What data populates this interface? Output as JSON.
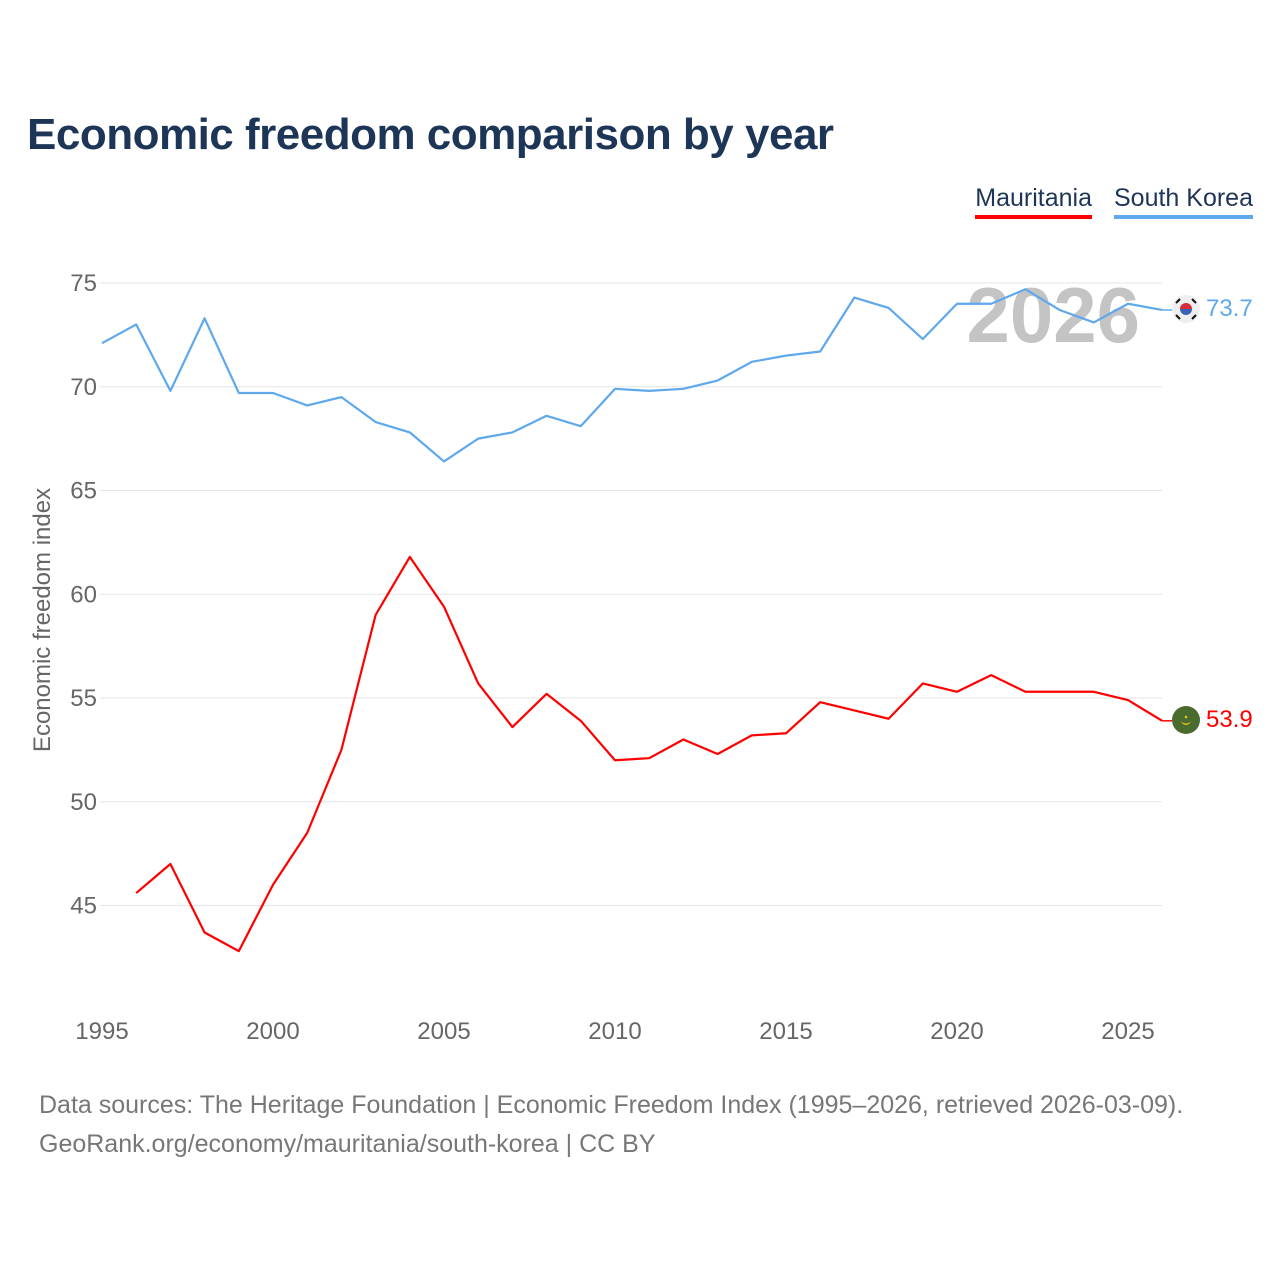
{
  "chart_data": {
    "type": "line",
    "title": "Economic freedom comparison by year",
    "xlabel": "",
    "ylabel": "Economic freedom index",
    "xlim": [
      1995,
      2026
    ],
    "ylim": [
      40.5,
      76
    ],
    "x_ticks": [
      "1995",
      "2000",
      "2005",
      "2010",
      "2015",
      "2020",
      "2025"
    ],
    "y_ticks": [
      "45",
      "50",
      "55",
      "60",
      "65",
      "70",
      "75"
    ],
    "grid": true,
    "legend_placement": "top-right",
    "watermark_year": "2026",
    "series": [
      {
        "name": "Mauritania",
        "color": "#ff0000",
        "end_label": "53.9",
        "x": [
          1996,
          1997,
          1998,
          1999,
          2000,
          2001,
          2002,
          2003,
          2004,
          2005,
          2006,
          2007,
          2008,
          2009,
          2010,
          2011,
          2012,
          2013,
          2014,
          2015,
          2016,
          2017,
          2018,
          2019,
          2020,
          2021,
          2022,
          2023,
          2024,
          2025,
          2026
        ],
        "values": [
          45.6,
          47.0,
          43.7,
          42.8,
          46.0,
          48.5,
          52.5,
          59.0,
          61.8,
          59.4,
          55.7,
          53.6,
          55.2,
          53.9,
          52.0,
          52.1,
          53.0,
          52.3,
          53.2,
          53.3,
          54.8,
          54.4,
          54.0,
          55.7,
          55.3,
          56.1,
          55.3,
          55.3,
          55.3,
          54.9,
          53.9
        ]
      },
      {
        "name": "South Korea",
        "color": "#5fa8ec",
        "end_label": "73.7",
        "x": [
          1995,
          1996,
          1997,
          1998,
          1999,
          2000,
          2001,
          2002,
          2003,
          2004,
          2005,
          2006,
          2007,
          2008,
          2009,
          2010,
          2011,
          2012,
          2013,
          2014,
          2015,
          2016,
          2017,
          2018,
          2019,
          2020,
          2021,
          2022,
          2023,
          2024,
          2025,
          2026
        ],
        "values": [
          72.1,
          73.0,
          69.8,
          73.3,
          69.7,
          69.7,
          69.1,
          69.5,
          68.3,
          67.8,
          66.4,
          67.5,
          67.8,
          68.6,
          68.1,
          69.9,
          69.8,
          69.9,
          70.3,
          71.2,
          71.5,
          71.7,
          74.3,
          73.8,
          72.3,
          74.0,
          74.0,
          74.7,
          73.7,
          73.1,
          74.0,
          73.7
        ]
      }
    ]
  },
  "footer": {
    "line1": "Data sources: The Heritage Foundation | Economic Freedom Index (1995–2026, retrieved 2026-03-09).",
    "line2": "GeoRank.org/economy/mauritania/south-korea | CC BY"
  }
}
